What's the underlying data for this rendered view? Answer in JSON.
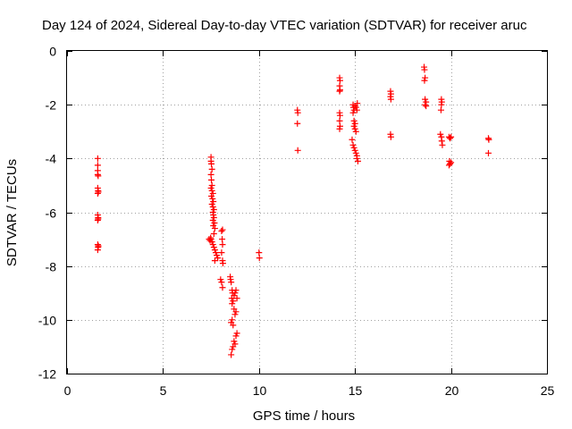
{
  "chart_data": {
    "type": "scatter",
    "title": "Day 124 of 2024, Sidereal Day-to-day VTEC variation (SDTVAR) for receiver aruc",
    "xlabel": "GPS time / hours",
    "ylabel": "SDTVAR / TECUs",
    "xlim": [
      0,
      25
    ],
    "ylim": [
      -12,
      0
    ],
    "x_ticks": [
      0,
      5,
      10,
      15,
      20,
      25
    ],
    "y_ticks": [
      0,
      -2,
      -4,
      -6,
      -8,
      -10,
      -12
    ],
    "x_tick_labels": [
      "0",
      "5",
      "10",
      "15",
      "20",
      "25"
    ],
    "y_tick_labels": [
      "0",
      "-2",
      "-4",
      "-6",
      "-8",
      "-10",
      "-12"
    ],
    "grid": true,
    "marker": "+",
    "series": [
      {
        "name": "SDTVAR",
        "color": "#ff0000",
        "points": [
          [
            1.6,
            -4.0
          ],
          [
            1.6,
            -4.25
          ],
          [
            1.6,
            -4.45
          ],
          [
            1.6,
            -4.6
          ],
          [
            1.62,
            -4.65
          ],
          [
            1.6,
            -5.1
          ],
          [
            1.62,
            -5.2
          ],
          [
            1.6,
            -5.3
          ],
          [
            1.63,
            -5.25
          ],
          [
            1.6,
            -6.1
          ],
          [
            1.62,
            -6.2
          ],
          [
            1.6,
            -6.3
          ],
          [
            1.62,
            -6.25
          ],
          [
            1.6,
            -7.2
          ],
          [
            1.62,
            -7.3
          ],
          [
            1.6,
            -7.4
          ],
          [
            1.63,
            -7.25
          ],
          [
            7.5,
            -3.95
          ],
          [
            7.5,
            -4.1
          ],
          [
            7.52,
            -4.2
          ],
          [
            7.55,
            -4.4
          ],
          [
            7.5,
            -4.6
          ],
          [
            7.52,
            -4.8
          ],
          [
            7.55,
            -5.0
          ],
          [
            7.5,
            -5.1
          ],
          [
            7.55,
            -5.2
          ],
          [
            7.6,
            -5.3
          ],
          [
            7.52,
            -5.4
          ],
          [
            7.58,
            -5.5
          ],
          [
            7.62,
            -5.6
          ],
          [
            7.55,
            -5.7
          ],
          [
            7.6,
            -5.8
          ],
          [
            7.65,
            -5.9
          ],
          [
            7.6,
            -6.0
          ],
          [
            7.62,
            -6.1
          ],
          [
            7.65,
            -6.2
          ],
          [
            7.6,
            -6.3
          ],
          [
            7.68,
            -6.4
          ],
          [
            7.62,
            -6.5
          ],
          [
            7.7,
            -6.6
          ],
          [
            7.65,
            -6.8
          ],
          [
            7.5,
            -7.0
          ],
          [
            7.55,
            -7.1
          ],
          [
            7.6,
            -7.2
          ],
          [
            7.65,
            -7.3
          ],
          [
            7.7,
            -7.4
          ],
          [
            7.75,
            -7.5
          ],
          [
            7.8,
            -7.6
          ],
          [
            7.85,
            -7.7
          ],
          [
            7.7,
            -7.8
          ],
          [
            7.4,
            -7.0
          ],
          [
            7.45,
            -7.05
          ],
          [
            7.48,
            -6.95
          ],
          [
            8.05,
            -6.7
          ],
          [
            8.1,
            -6.65
          ],
          [
            8.08,
            -7.0
          ],
          [
            8.1,
            -7.2
          ],
          [
            8.05,
            -7.5
          ],
          [
            8.1,
            -7.8
          ],
          [
            8.12,
            -7.9
          ],
          [
            8.0,
            -8.5
          ],
          [
            8.05,
            -8.6
          ],
          [
            8.1,
            -8.8
          ],
          [
            8.5,
            -8.4
          ],
          [
            8.52,
            -8.5
          ],
          [
            8.55,
            -8.6
          ],
          [
            8.6,
            -8.9
          ],
          [
            8.62,
            -9.0
          ],
          [
            8.58,
            -9.2
          ],
          [
            8.65,
            -9.3
          ],
          [
            8.7,
            -9.1
          ],
          [
            8.75,
            -9.0
          ],
          [
            8.8,
            -8.9
          ],
          [
            8.85,
            -9.2
          ],
          [
            8.6,
            -9.4
          ],
          [
            8.7,
            -9.6
          ],
          [
            8.75,
            -9.8
          ],
          [
            8.8,
            -9.7
          ],
          [
            8.6,
            -10.0
          ],
          [
            8.65,
            -10.2
          ],
          [
            8.55,
            -10.1
          ],
          [
            8.8,
            -10.6
          ],
          [
            8.85,
            -10.5
          ],
          [
            8.7,
            -10.8
          ],
          [
            8.65,
            -11.0
          ],
          [
            8.6,
            -11.1
          ],
          [
            8.55,
            -11.3
          ],
          [
            8.75,
            -10.9
          ],
          [
            10.0,
            -7.5
          ],
          [
            10.02,
            -7.7
          ],
          [
            12.0,
            -2.2
          ],
          [
            12.02,
            -2.3
          ],
          [
            12.0,
            -2.7
          ],
          [
            12.02,
            -3.7
          ],
          [
            14.2,
            -1.0
          ],
          [
            14.22,
            -1.1
          ],
          [
            14.2,
            -1.3
          ],
          [
            14.22,
            -1.45
          ],
          [
            14.2,
            -1.5
          ],
          [
            14.2,
            -2.3
          ],
          [
            14.22,
            -2.4
          ],
          [
            14.2,
            -2.6
          ],
          [
            14.22,
            -2.8
          ],
          [
            14.2,
            -2.9
          ],
          [
            14.9,
            -2.0
          ],
          [
            14.92,
            -2.1
          ],
          [
            14.95,
            -2.2
          ],
          [
            14.9,
            -2.3
          ],
          [
            14.95,
            -2.6
          ],
          [
            15.0,
            -2.7
          ],
          [
            14.95,
            -2.8
          ],
          [
            15.0,
            -2.9
          ],
          [
            15.05,
            -3.0
          ],
          [
            14.85,
            -3.3
          ],
          [
            14.9,
            -3.5
          ],
          [
            14.95,
            -3.6
          ],
          [
            15.0,
            -3.7
          ],
          [
            15.05,
            -3.8
          ],
          [
            15.1,
            -3.9
          ],
          [
            15.1,
            -4.0
          ],
          [
            15.15,
            -4.1
          ],
          [
            15.0,
            -2.05
          ],
          [
            15.05,
            -2.1
          ],
          [
            15.1,
            -2.2
          ],
          [
            15.12,
            -1.95
          ],
          [
            16.85,
            -1.5
          ],
          [
            16.87,
            -1.6
          ],
          [
            16.85,
            -1.7
          ],
          [
            16.87,
            -1.8
          ],
          [
            16.85,
            -3.1
          ],
          [
            16.87,
            -3.2
          ],
          [
            18.6,
            -0.6
          ],
          [
            18.62,
            -0.7
          ],
          [
            18.65,
            -1.0
          ],
          [
            18.62,
            -1.1
          ],
          [
            18.65,
            -1.8
          ],
          [
            18.7,
            -1.9
          ],
          [
            18.65,
            -2.0
          ],
          [
            18.7,
            -2.05
          ],
          [
            19.5,
            -1.8
          ],
          [
            19.52,
            -1.9
          ],
          [
            19.5,
            -2.0
          ],
          [
            19.48,
            -2.2
          ],
          [
            19.45,
            -3.1
          ],
          [
            19.5,
            -3.2
          ],
          [
            19.52,
            -3.35
          ],
          [
            19.55,
            -3.5
          ],
          [
            19.9,
            -3.2
          ],
          [
            19.95,
            -3.25
          ],
          [
            20.0,
            -3.2
          ],
          [
            19.92,
            -4.1
          ],
          [
            19.95,
            -4.2
          ],
          [
            19.9,
            -4.25
          ],
          [
            20.0,
            -4.15
          ],
          [
            21.95,
            -3.25
          ],
          [
            21.97,
            -3.3
          ],
          [
            21.95,
            -3.8
          ]
        ]
      }
    ]
  }
}
